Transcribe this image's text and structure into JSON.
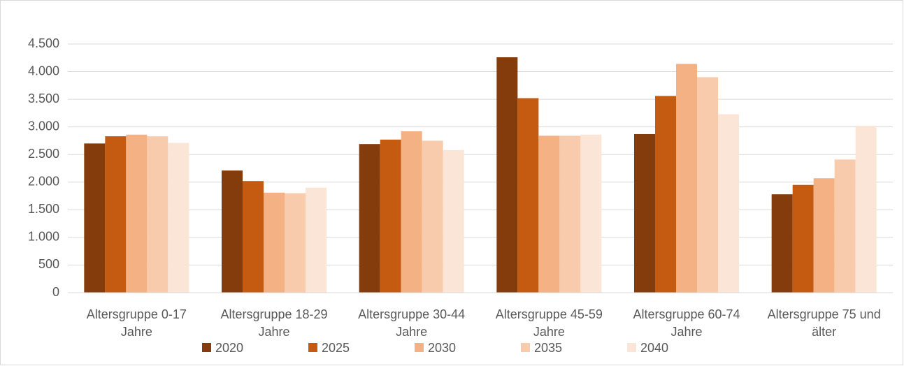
{
  "chart_data": {
    "type": "bar",
    "categories": [
      "Altersgruppe 0-17 Jahre",
      "Altersgruppe 18-29 Jahre",
      "Altersgruppe 30-44 Jahre",
      "Altersgruppe 45-59 Jahre",
      "Altersgruppe 60-74 Jahre",
      "Altersgruppe 75 und älter"
    ],
    "series": [
      {
        "name": "2020",
        "color": "#843c0c",
        "values": [
          2700,
          2210,
          2690,
          4260,
          2870,
          1780
        ]
      },
      {
        "name": "2025",
        "color": "#c55a11",
        "values": [
          2830,
          2020,
          2770,
          3520,
          3560,
          1950
        ]
      },
      {
        "name": "2030",
        "color": "#f4b183",
        "values": [
          2860,
          1810,
          2920,
          2840,
          4140,
          2070
        ]
      },
      {
        "name": "2035",
        "color": "#f8cbad",
        "values": [
          2830,
          1800,
          2750,
          2840,
          3900,
          2410
        ]
      },
      {
        "name": "2040",
        "color": "#fbe5d6",
        "values": [
          2710,
          1900,
          2580,
          2860,
          3230,
          3020
        ]
      }
    ],
    "ylim": [
      0,
      4500
    ],
    "yticks": [
      0,
      500,
      {
        "value": 1000,
        "label": "1.000"
      },
      {
        "value": 1500,
        "label": "1.500"
      },
      {
        "value": 2000,
        "label": "2.000"
      },
      {
        "value": 2500,
        "label": "2.500"
      },
      {
        "value": 3000,
        "label": "3.000"
      },
      {
        "value": 3500,
        "label": "3.500"
      },
      {
        "value": 4000,
        "label": "4.000"
      },
      {
        "value": 4500,
        "label": "4.500"
      }
    ],
    "grid": true,
    "legend": "bottom"
  }
}
